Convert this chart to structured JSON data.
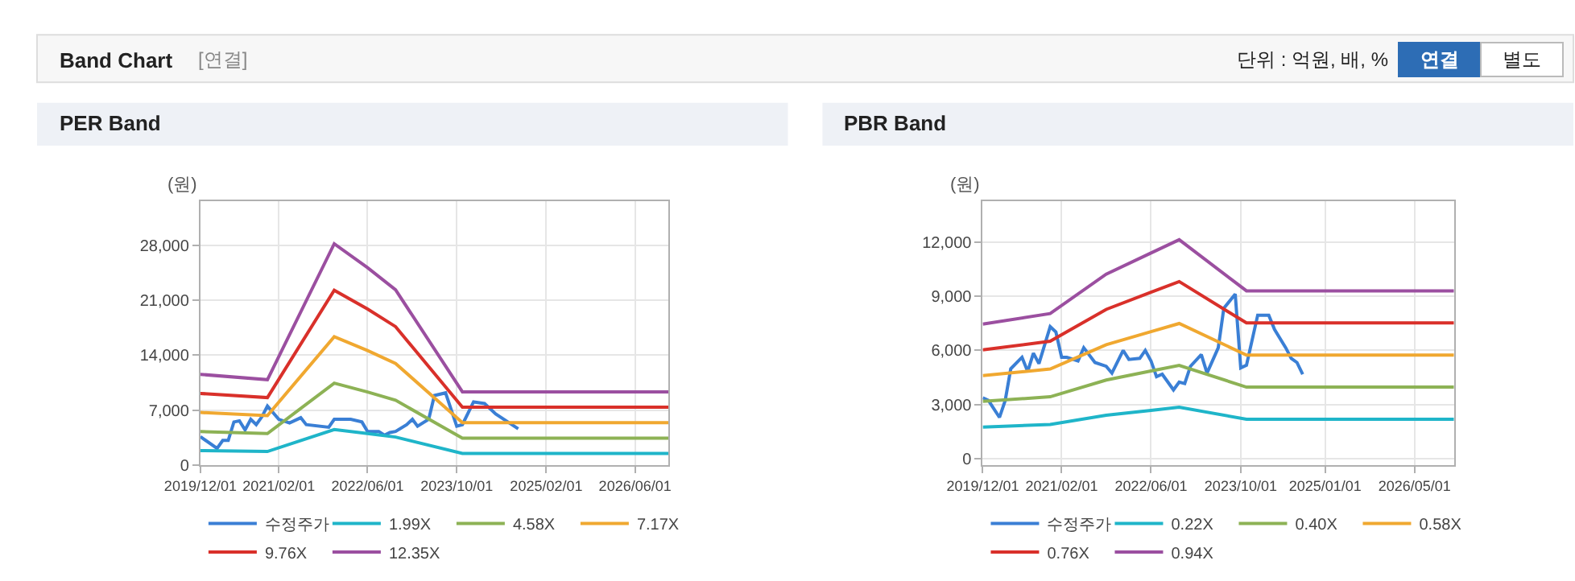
{
  "chart_data": [
    {
      "type": "other",
      "title": "Band Chart",
      "annotations": [
        "[연결]",
        "단위 : 억원, 배, %",
        "연결",
        "별도"
      ]
    },
    {
      "type": "line",
      "title": "PER Band",
      "ylabel": "(원)",
      "legend": "bottom",
      "grid": true,
      "marker": "none",
      "line_style": "solid",
      "xlim": [
        "2019-12-01",
        "2026-12-01"
      ],
      "ylim": [
        0,
        33600
      ],
      "xticks": [
        {
          "value": "2019-12-01",
          "label": "2019/12/01"
        },
        {
          "value": "2021-02-01",
          "label": "2021/02/01"
        },
        {
          "value": "2022-06-01",
          "label": "2022/06/01"
        },
        {
          "value": "2023-10-01",
          "label": "2023/10/01"
        },
        {
          "value": "2025-02-01",
          "label": "2025/02/01"
        },
        {
          "value": "2026-06-01",
          "label": "2026/06/01"
        }
      ],
      "yticks": [
        0,
        {
          "value": 7000,
          "label": "7,000"
        },
        {
          "value": 14000,
          "label": "14,000"
        },
        {
          "value": 21000,
          "label": "21,000"
        },
        {
          "value": 28000,
          "label": "28,000"
        }
      ],
      "series": [
        {
          "name": "수정주가",
          "color": "#3a7fd5",
          "x": [
            "2019-12",
            "2020-03",
            "2020-04",
            "2020-05",
            "2020-06",
            "2020-07",
            "2020-08",
            "2020-09",
            "2020-10",
            "2020-11",
            "2020-12",
            "2021-02",
            "2021-04",
            "2021-06",
            "2021-07",
            "2021-11",
            "2021-12",
            "2022-03",
            "2022-05",
            "2022-06",
            "2022-08",
            "2022-09",
            "2022-10",
            "2022-11",
            "2023-01",
            "2023-02",
            "2023-03",
            "2023-05",
            "2023-06",
            "2023-08",
            "2023-10",
            "2023-11",
            "2024-01",
            "2024-03",
            "2024-05",
            "2024-09"
          ],
          "values": [
            3630,
            2150,
            3160,
            3160,
            5510,
            5650,
            4500,
            5850,
            5170,
            6180,
            7530,
            5850,
            5380,
            6050,
            5170,
            4840,
            5850,
            5850,
            5510,
            4300,
            4300,
            3830,
            4170,
            4300,
            5170,
            5850,
            4970,
            5850,
            8870,
            9210,
            4970,
            5170,
            8060,
            7860,
            6520,
            4640
          ]
        },
        {
          "name": "1.99X",
          "color": "#1fb5c9",
          "x": [
            "2019-12",
            "2020-12",
            "2021-12",
            "2022-06",
            "2022-11",
            "2023-11",
            "2026-12"
          ],
          "values": [
            1863,
            1755,
            4537,
            4050,
            3594,
            1504,
            1504
          ]
        },
        {
          "name": "4.58X",
          "color": "#8db255",
          "x": [
            "2019-12",
            "2020-12",
            "2021-12",
            "2022-06",
            "2022-11",
            "2023-11",
            "2026-12"
          ],
          "values": [
            4287,
            4040,
            10442,
            9320,
            8271,
            3462,
            3462
          ]
        },
        {
          "name": "7.17X",
          "color": "#f0a830",
          "x": [
            "2019-12",
            "2020-12",
            "2021-12",
            "2022-06",
            "2022-11",
            "2023-11",
            "2026-12"
          ],
          "values": [
            6711,
            6324,
            16348,
            14591,
            12949,
            5421,
            5421
          ]
        },
        {
          "name": "9.76X",
          "color": "#d9302a",
          "x": [
            "2019-12",
            "2020-12",
            "2021-12",
            "2022-06",
            "2022-11",
            "2023-11",
            "2026-12"
          ],
          "values": [
            9135,
            8608,
            22253,
            19862,
            17627,
            7379,
            7379
          ]
        },
        {
          "name": "12.35X",
          "color": "#9b4fa0",
          "x": [
            "2019-12",
            "2020-12",
            "2021-12",
            "2022-06",
            "2022-11",
            "2023-11",
            "2026-12"
          ],
          "values": [
            11560,
            10890,
            28160,
            25130,
            22310,
            9340,
            9340
          ]
        }
      ]
    },
    {
      "type": "line",
      "title": "PBR Band",
      "ylabel": "(원)",
      "legend": "bottom",
      "grid": true,
      "marker": "none",
      "line_style": "solid",
      "xlim": [
        "2019-12-01",
        "2026-12-01"
      ],
      "ylim": [
        -380,
        14300
      ],
      "xticks": [
        {
          "value": "2019-12-01",
          "label": "2019/12/01"
        },
        {
          "value": "2021-02-01",
          "label": "2021/02/01"
        },
        {
          "value": "2022-06-01",
          "label": "2022/06/01"
        },
        {
          "value": "2023-10-01",
          "label": "2023/10/01"
        },
        {
          "value": "2025-01-01",
          "label": "2025/01/01"
        },
        {
          "value": "2026-05-01",
          "label": "2026/05/01"
        }
      ],
      "yticks": [
        0,
        {
          "value": 3000,
          "label": "3,000"
        },
        {
          "value": 6000,
          "label": "6,000"
        },
        {
          "value": 9000,
          "label": "9,000"
        },
        {
          "value": 12000,
          "label": "12,000"
        }
      ],
      "series": [
        {
          "name": "수정주가",
          "color": "#3a7fd5",
          "x": [
            "2019-12",
            "2020-01",
            "2020-03",
            "2020-04",
            "2020-05",
            "2020-07",
            "2020-08",
            "2020-09",
            "2020-10",
            "2020-12",
            "2021-01",
            "2021-02",
            "2021-03",
            "2021-05",
            "2021-06",
            "2021-08",
            "2021-10",
            "2021-11",
            "2022-01",
            "2022-02",
            "2022-04",
            "2022-05",
            "2022-06",
            "2022-07",
            "2022-08",
            "2022-10",
            "2022-11",
            "2022-12",
            "2023-01",
            "2023-03",
            "2023-04",
            "2023-06",
            "2023-07",
            "2023-09",
            "2023-10",
            "2023-11",
            "2024-01",
            "2024-03",
            "2024-04",
            "2024-06",
            "2024-07",
            "2024-08",
            "2024-09"
          ],
          "values": [
            3370,
            3220,
            2280,
            3220,
            4980,
            5620,
            4830,
            5850,
            5270,
            7320,
            7020,
            5620,
            5620,
            5420,
            6150,
            5330,
            5120,
            4740,
            6000,
            5500,
            5560,
            6000,
            5420,
            4540,
            4680,
            3810,
            4240,
            4160,
            5120,
            5770,
            4740,
            6150,
            8340,
            9130,
            5030,
            5180,
            7960,
            7960,
            7170,
            6150,
            5560,
            5330,
            4680
          ]
        },
        {
          "name": "0.22X",
          "color": "#1fb5c9",
          "x": [
            "2019-12",
            "2020-12",
            "2021-10",
            "2022-06",
            "2022-11",
            "2023-11",
            "2026-12"
          ],
          "values": [
            1746,
            1884,
            2397,
            2672,
            2844,
            2179,
            2179
          ]
        },
        {
          "name": "0.40X",
          "color": "#8db255",
          "x": [
            "2019-12",
            "2020-12",
            "2021-10",
            "2022-06",
            "2022-11",
            "2023-11",
            "2026-12"
          ],
          "values": [
            3174,
            3426,
            4358,
            4858,
            5170,
            3962,
            3962
          ]
        },
        {
          "name": "0.58X",
          "color": "#f0a830",
          "x": [
            "2019-12",
            "2020-12",
            "2021-10",
            "2022-06",
            "2022-11",
            "2023-11",
            "2026-12"
          ],
          "values": [
            4603,
            4967,
            6319,
            7044,
            7497,
            5744,
            5744
          ]
        },
        {
          "name": "0.76X",
          "color": "#d9302a",
          "x": [
            "2019-12",
            "2020-12",
            "2021-10",
            "2022-06",
            "2022-11",
            "2023-11",
            "2026-12"
          ],
          "values": [
            6031,
            6509,
            8279,
            9229,
            9824,
            7527,
            7527
          ]
        },
        {
          "name": "0.94X",
          "color": "#9b4fa0",
          "x": [
            "2019-12",
            "2020-12",
            "2021-10",
            "2022-06",
            "2022-11",
            "2023-11",
            "2026-12"
          ],
          "values": [
            7460,
            8050,
            10240,
            11415,
            12150,
            9310,
            9310
          ]
        }
      ]
    }
  ]
}
